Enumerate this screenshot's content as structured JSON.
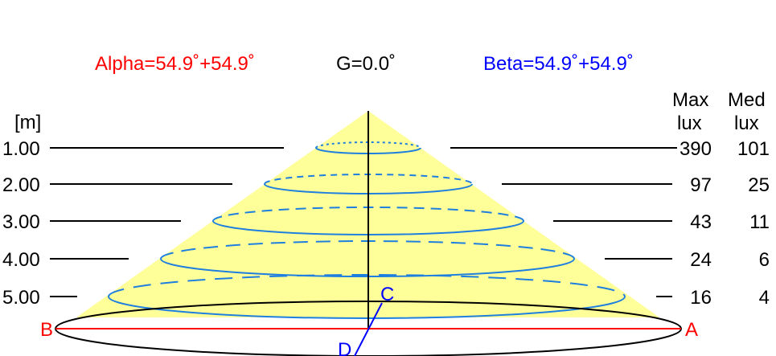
{
  "header": {
    "alpha": "Alpha=54.9˚+54.9˚",
    "gamma": "G=0.0˚",
    "beta": "Beta=54.9˚+54.9˚"
  },
  "columns": {
    "unit": "[m]",
    "max_top": "Max",
    "max_bottom": "lux",
    "med_top": "Med",
    "med_bottom": "lux"
  },
  "rows": [
    {
      "distance": "1.00",
      "max_lux": "390",
      "med_lux": "101"
    },
    {
      "distance": "2.00",
      "max_lux": "97",
      "med_lux": "25"
    },
    {
      "distance": "3.00",
      "max_lux": "43",
      "med_lux": "11"
    },
    {
      "distance": "4.00",
      "max_lux": "24",
      "med_lux": "6"
    },
    {
      "distance": "5.00",
      "max_lux": "16",
      "med_lux": "4"
    }
  ],
  "points": {
    "a": "A",
    "b": "B",
    "c": "C",
    "d": "D"
  },
  "colors": {
    "alpha": "#ff0000",
    "beta": "#0000ff",
    "cone_fill": "#ffff99",
    "ellipse_stroke": "#1f7fdf",
    "axis": "#000000"
  }
}
